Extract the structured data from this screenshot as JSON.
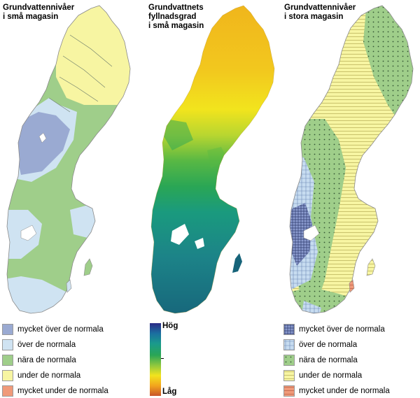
{
  "panels": [
    {
      "title": "Grundvattennivåer\ni små magasin"
    },
    {
      "title": "Grundvattnets\nfyllnadsgrad\ni små magasin"
    },
    {
      "title": "Grundvattennivåer\ni stora magasin"
    }
  ],
  "legend_small": [
    {
      "label": "mycket över de normala",
      "color": "#9aaad2"
    },
    {
      "label": "över de normala",
      "color": "#cfe3f2"
    },
    {
      "label": "nära de normala",
      "color": "#9fce8a"
    },
    {
      "label": "under de normala",
      "color": "#f7f5a2"
    },
    {
      "label": "mycket under de normala",
      "color": "#f09a7a"
    }
  ],
  "legend_large": [
    {
      "label": "mycket över de normala",
      "color": "#8b9bcf",
      "pattern": "grid-dense"
    },
    {
      "label": "över de normala",
      "color": "#c7dcf0",
      "pattern": "grid"
    },
    {
      "label": "nära de normala",
      "color": "#9fce8a",
      "pattern": "dots"
    },
    {
      "label": "under de normala",
      "color": "#f7f5a2",
      "pattern": "hlines"
    },
    {
      "label": "mycket under de normala",
      "color": "#f09a7a",
      "pattern": "hlines-red"
    }
  ],
  "gradient": {
    "high": "Hög",
    "low": "Låg"
  }
}
